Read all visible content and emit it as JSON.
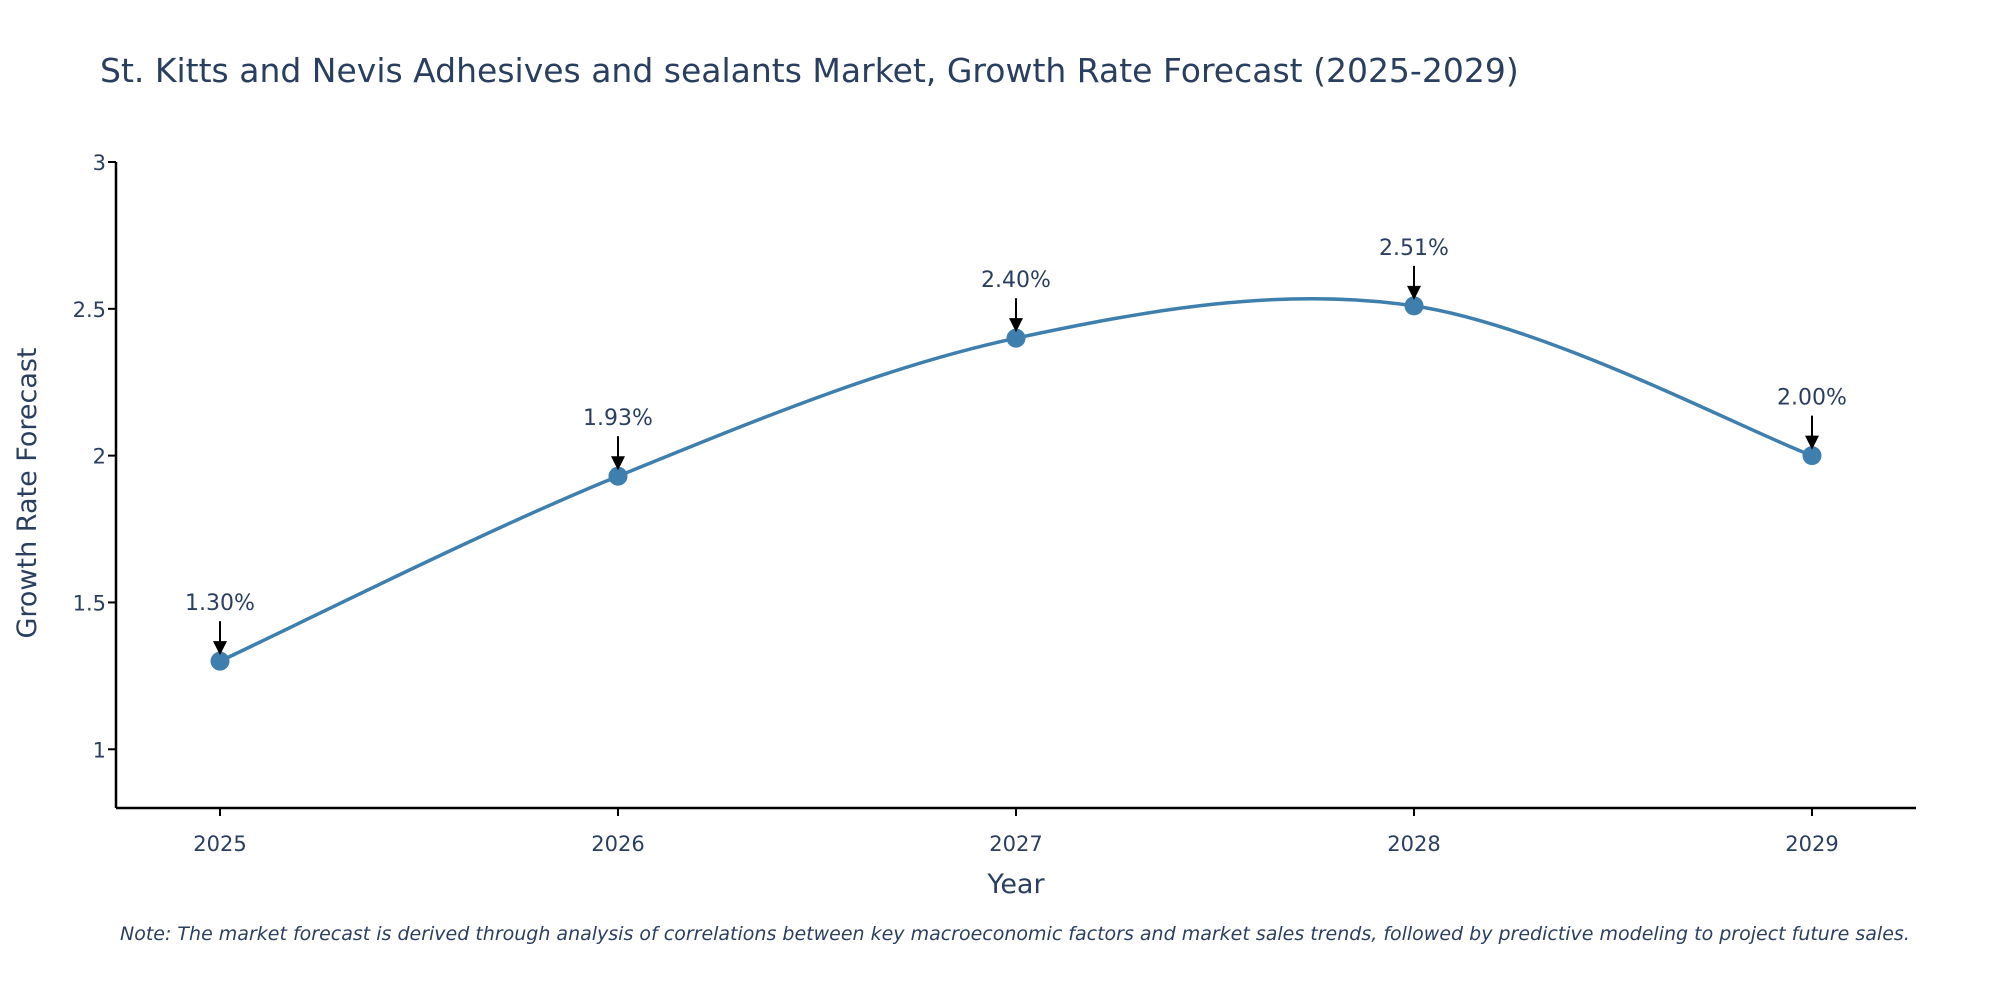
{
  "chart_data": {
    "type": "line",
    "title": "St. Kitts and Nevis Adhesives and sealants Market, Growth Rate Forecast (2025-2029)",
    "xlabel": "Year",
    "ylabel": "Growth Rate Forecast",
    "categories": [
      "2025",
      "2026",
      "2027",
      "2028",
      "2029"
    ],
    "values": [
      1.3,
      1.93,
      2.4,
      2.51,
      2.0
    ],
    "data_labels": [
      "1.30%",
      "1.93%",
      "2.40%",
      "2.51%",
      "2.00%"
    ],
    "ylim": [
      0.8,
      3.0
    ],
    "yticks": [
      1,
      1.5,
      2,
      2.5,
      3
    ],
    "ytick_labels": [
      "1",
      "1.5",
      "2",
      "2.5",
      "3"
    ],
    "grid": false,
    "line_shape": "smooth",
    "line_color": "#3f7fad",
    "marker_color": "#3f7fad",
    "annotation_arrow_color": "#000000",
    "note": "Note: The market forecast is derived through analysis of correlations between key macroeconomic factors and market sales trends, followed by predictive modeling to project future sales."
  }
}
